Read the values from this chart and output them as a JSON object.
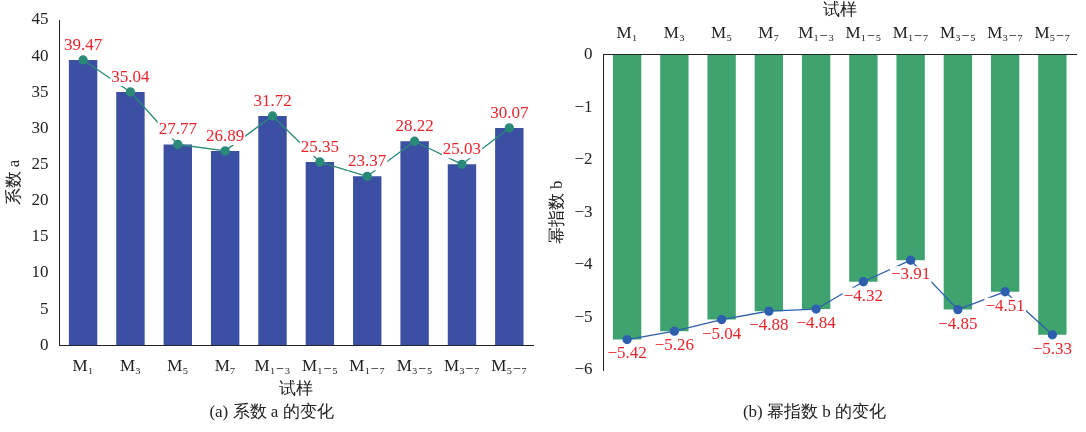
{
  "chart_data": [
    {
      "type": "bar",
      "xlabel": "试样",
      "ylabel": "系数 a",
      "categories": [
        "M₁",
        "M₃",
        "M₅",
        "M₇",
        "M₁₋₃",
        "M₁₋₅",
        "M₁₋₇",
        "M₃₋₅",
        "M₃₋₇",
        "M₅₋₇"
      ],
      "series": [
        {
          "color": "#3b4fa3",
          "values": [
            39.47,
            35.04,
            27.77,
            26.89,
            31.72,
            25.35,
            23.37,
            28.22,
            25.03,
            30.07
          ]
        },
        {
          "type": "line",
          "color": "#2a8a78",
          "marker": "circle",
          "values": [
            39.47,
            35.04,
            27.77,
            26.89,
            31.72,
            25.35,
            23.37,
            28.22,
            25.03,
            30.07
          ],
          "value_labels": [
            "39.47",
            "35.04",
            "27.77",
            "26.89",
            "31.72",
            "25.35",
            "23.37",
            "28.22",
            "25.03",
            "30.07"
          ]
        }
      ],
      "ylim": [
        0,
        45
      ],
      "yticks": [
        0,
        5,
        10,
        15,
        20,
        25,
        30,
        35,
        40,
        45
      ],
      "grid": false,
      "legend": false,
      "annotations": [
        "(a) 系数 a 的变化"
      ]
    },
    {
      "type": "bar",
      "xlabel": "试样",
      "ylabel": "幂指数 b",
      "categories": [
        "M₁",
        "M₃",
        "M₅",
        "M₇",
        "M₁₋₃",
        "M₁₋₅",
        "M₁₋₇",
        "M₃₋₅",
        "M₃₋₇",
        "M₅₋₇"
      ],
      "series": [
        {
          "color": "#3ea36e",
          "values": [
            -5.42,
            -5.26,
            -5.04,
            -4.88,
            -4.84,
            -4.32,
            -3.91,
            -4.85,
            -4.51,
            -5.33
          ]
        },
        {
          "type": "line",
          "color": "#2d5fae",
          "marker": "circle",
          "values": [
            -5.42,
            -5.26,
            -5.04,
            -4.88,
            -4.84,
            -4.32,
            -3.91,
            -4.85,
            -4.51,
            -5.33
          ],
          "value_labels": [
            "−5.42",
            "−5.26",
            "−5.04",
            "−4.88",
            "−4.84",
            "−4.32",
            "−3.91",
            "−4.85",
            "−4.51",
            "−5.33"
          ]
        }
      ],
      "ylim": [
        -6,
        0
      ],
      "yticks": [
        {
          "value": -6,
          "label": "−6"
        },
        {
          "value": -5,
          "label": "−5"
        },
        {
          "value": -4,
          "label": "−4"
        },
        {
          "value": -3,
          "label": "−3"
        },
        {
          "value": -2,
          "label": "−2"
        },
        {
          "value": -1,
          "label": "−1"
        },
        0
      ],
      "grid": false,
      "legend": false,
      "annotations": [
        "(b) 幂指数 b 的变化"
      ]
    }
  ]
}
